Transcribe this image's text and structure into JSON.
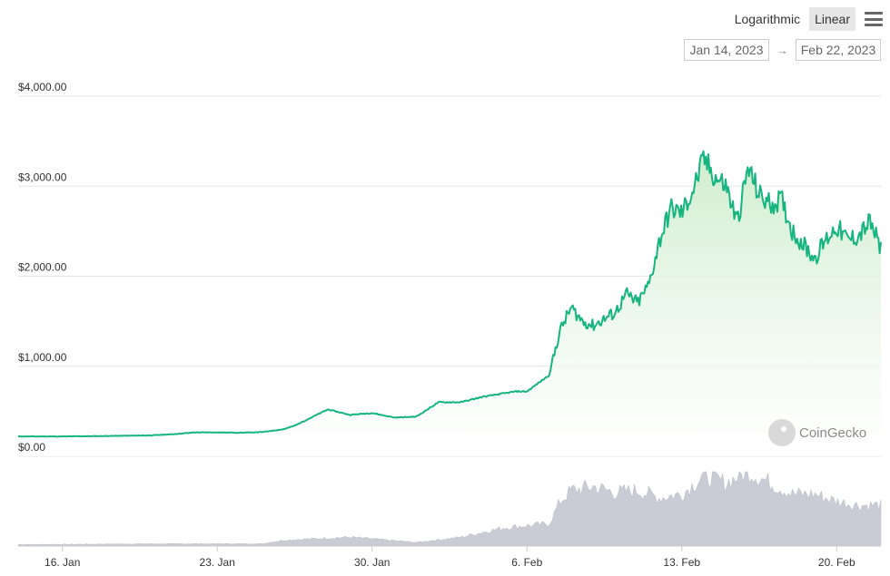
{
  "toolbar": {
    "log_label": "Logarithmic",
    "linear_label": "Linear",
    "active_scale": "Linear",
    "menu_icon": "hamburger-menu-icon"
  },
  "range": {
    "from": "Jan 14, 2023",
    "arrow": "→",
    "to": "Feb 22, 2023"
  },
  "watermark": {
    "text": "CoinGecko"
  },
  "colors": {
    "line": "#16b57f",
    "area_top": "#cdeccb",
    "area_bottom": "#ffffff",
    "volume": "#c9ccd4",
    "grid": "#e6e6e6"
  },
  "chart_data": {
    "type": "area",
    "x_range": [
      "2023-01-14",
      "2023-02-22"
    ],
    "ylim": [
      0,
      4000
    ],
    "y_ticks": [
      "$0.00",
      "$1,000.00",
      "$2,000.00",
      "$3,000.00",
      "$4,000.00"
    ],
    "y_tick_values": [
      0,
      1000,
      2000,
      3000,
      4000
    ],
    "x_ticks": [
      "16. Jan",
      "23. Jan",
      "30. Jan",
      "6. Feb",
      "13. Feb",
      "20. Feb"
    ],
    "x_tick_dates": [
      "2023-01-16",
      "2023-01-23",
      "2023-01-30",
      "2023-02-06",
      "2023-02-13",
      "2023-02-20"
    ],
    "grid": true,
    "series": [
      {
        "values": [
          [
            "2023-01-14",
            220
          ],
          [
            "2023-01-16",
            220
          ],
          [
            "2023-01-18",
            225
          ],
          [
            "2023-01-20",
            232
          ],
          [
            "2023-01-21",
            245
          ],
          [
            "2023-01-22",
            265
          ],
          [
            "2023-01-23",
            265
          ],
          [
            "2023-01-24",
            262
          ],
          [
            "2023-01-25",
            268
          ],
          [
            "2023-01-26",
            300
          ],
          [
            "2023-01-26T12",
            340
          ],
          [
            "2023-01-27",
            400
          ],
          [
            "2023-01-28",
            520
          ],
          [
            "2023-01-29",
            460
          ],
          [
            "2023-01-30",
            480
          ],
          [
            "2023-01-31",
            430
          ],
          [
            "2023-02-01",
            440
          ],
          [
            "2023-02-01T12",
            520
          ],
          [
            "2023-02-02",
            600
          ],
          [
            "2023-02-03",
            600
          ],
          [
            "2023-02-04",
            660
          ],
          [
            "2023-02-05",
            700
          ],
          [
            "2023-02-05T12",
            720
          ],
          [
            "2023-02-06",
            720
          ],
          [
            "2023-02-07",
            900
          ],
          [
            "2023-02-07T12",
            1400
          ],
          [
            "2023-02-08",
            1650
          ],
          [
            "2023-02-08T12",
            1500
          ],
          [
            "2023-02-09",
            1450
          ],
          [
            "2023-02-10",
            1600
          ],
          [
            "2023-02-10T12",
            1800
          ],
          [
            "2023-02-11",
            1700
          ],
          [
            "2023-02-11T12",
            1900
          ],
          [
            "2023-02-12",
            2400
          ],
          [
            "2023-02-12T12",
            2750
          ],
          [
            "2023-02-13",
            2700
          ],
          [
            "2023-02-13T12",
            2950
          ],
          [
            "2023-02-14",
            3300
          ],
          [
            "2023-02-14T12",
            3100
          ],
          [
            "2023-02-15",
            3000
          ],
          [
            "2023-02-15T12",
            2600
          ],
          [
            "2023-02-16",
            3200
          ],
          [
            "2023-02-16T12",
            2900
          ],
          [
            "2023-02-17",
            2800
          ],
          [
            "2023-02-17T12",
            2850
          ],
          [
            "2023-02-18",
            2500
          ],
          [
            "2023-02-18T12",
            2350
          ],
          [
            "2023-02-19",
            2200
          ],
          [
            "2023-02-19T12",
            2400
          ],
          [
            "2023-02-20",
            2550
          ],
          [
            "2023-02-20T12",
            2400
          ],
          [
            "2023-02-21",
            2450
          ],
          [
            "2023-02-21T12",
            2600
          ],
          [
            "2023-02-22",
            2300
          ]
        ]
      }
    ],
    "volume": {
      "type": "area",
      "values": [
        [
          "2023-01-14",
          2
        ],
        [
          "2023-01-20",
          3
        ],
        [
          "2023-01-25",
          3
        ],
        [
          "2023-01-26",
          8
        ],
        [
          "2023-01-29",
          12
        ],
        [
          "2023-02-01",
          5
        ],
        [
          "2023-02-03",
          12
        ],
        [
          "2023-02-05",
          25
        ],
        [
          "2023-02-07",
          30
        ],
        [
          "2023-02-07T12",
          60
        ],
        [
          "2023-02-08",
          75
        ],
        [
          "2023-02-09",
          80
        ],
        [
          "2023-02-10",
          72
        ],
        [
          "2023-02-11",
          75
        ],
        [
          "2023-02-12",
          65
        ],
        [
          "2023-02-13",
          70
        ],
        [
          "2023-02-14",
          95
        ],
        [
          "2023-02-15",
          85
        ],
        [
          "2023-02-16",
          100
        ],
        [
          "2023-02-17",
          85
        ],
        [
          "2023-02-18",
          70
        ],
        [
          "2023-02-19",
          70
        ],
        [
          "2023-02-20",
          60
        ],
        [
          "2023-02-21",
          55
        ],
        [
          "2023-02-22",
          55
        ]
      ]
    }
  }
}
